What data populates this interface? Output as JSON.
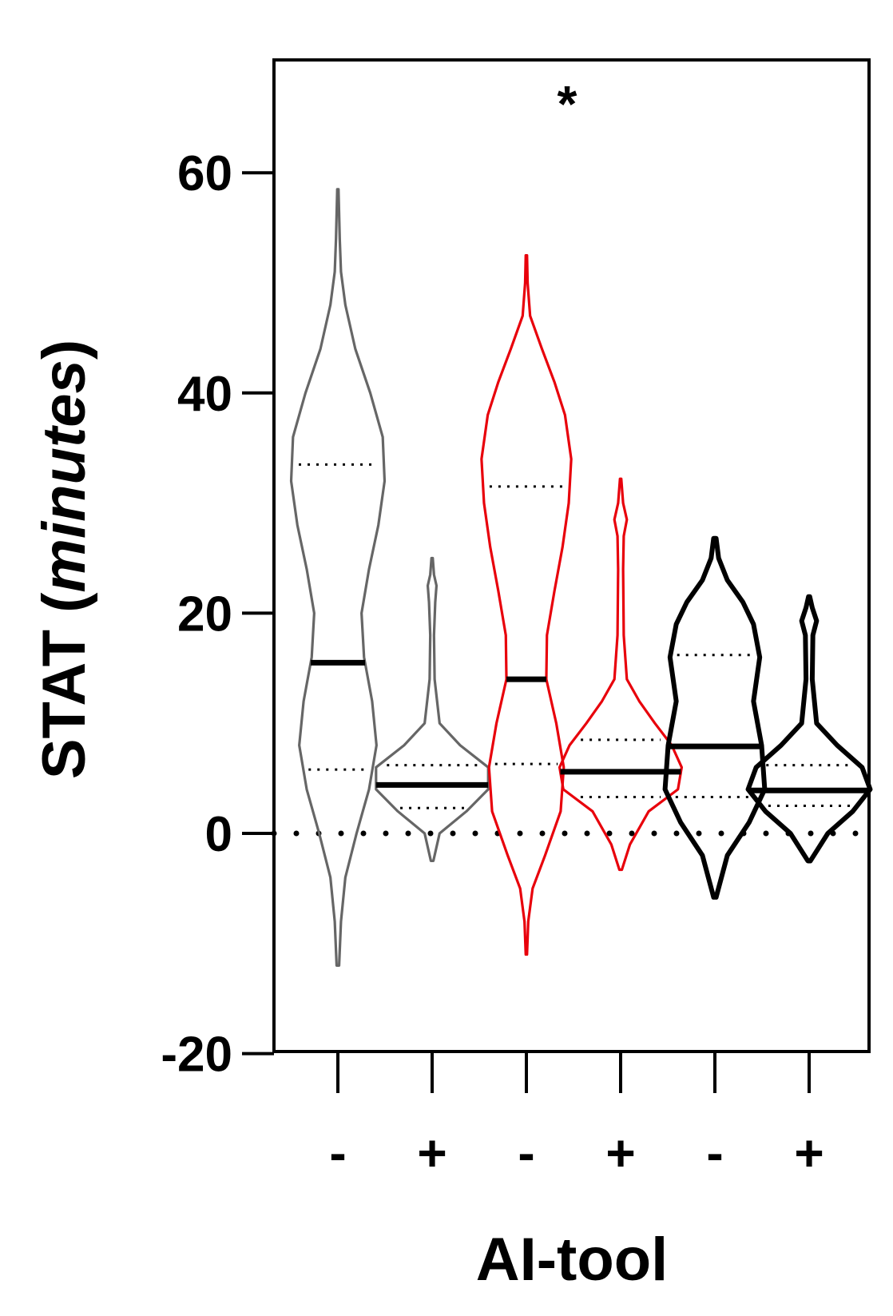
{
  "chart_data": {
    "type": "violin",
    "ylabel": {
      "prefix": "STAT (",
      "italic": "minutes",
      "suffix": ")"
    },
    "xlabel": "AI-tool",
    "ylim": [
      -20,
      70
    ],
    "yticks": [
      -20,
      0,
      20,
      40,
      60
    ],
    "reference_line": 0,
    "annotation": "*",
    "groups": [
      {
        "category": "-",
        "color": "#666666",
        "min": -12,
        "max": 58.5,
        "median": 15.5,
        "q1": 5.8,
        "q3": 33.5,
        "profile": [
          [
            -12,
            0.02
          ],
          [
            -8,
            0.05
          ],
          [
            -4,
            0.12
          ],
          [
            0,
            0.3
          ],
          [
            4,
            0.5
          ],
          [
            8,
            0.62
          ],
          [
            12,
            0.55
          ],
          [
            16,
            0.42
          ],
          [
            20,
            0.38
          ],
          [
            24,
            0.5
          ],
          [
            28,
            0.65
          ],
          [
            32,
            0.75
          ],
          [
            36,
            0.72
          ],
          [
            40,
            0.52
          ],
          [
            44,
            0.28
          ],
          [
            48,
            0.12
          ],
          [
            51,
            0.05
          ],
          [
            54,
            0.03
          ],
          [
            58.5,
            0.01
          ]
        ]
      },
      {
        "category": "+",
        "color": "#666666",
        "min": -2.5,
        "max": 25,
        "median": 4.4,
        "q1": 2.3,
        "q3": 6.2,
        "profile": [
          [
            -2.5,
            0.02
          ],
          [
            0,
            0.12
          ],
          [
            2,
            0.55
          ],
          [
            4,
            0.9
          ],
          [
            6,
            0.9
          ],
          [
            8,
            0.45
          ],
          [
            10,
            0.12
          ],
          [
            14,
            0.04
          ],
          [
            18,
            0.03
          ],
          [
            21,
            0.05
          ],
          [
            22.5,
            0.07
          ],
          [
            23.5,
            0.03
          ],
          [
            25,
            0.01
          ]
        ]
      },
      {
        "category": "-",
        "color": "#e8000b",
        "min": -11,
        "max": 52.5,
        "median": 14,
        "q1": 6.3,
        "q3": 31.5,
        "profile": [
          [
            -11,
            0.01
          ],
          [
            -8,
            0.03
          ],
          [
            -5,
            0.1
          ],
          [
            -2,
            0.3
          ],
          [
            2,
            0.55
          ],
          [
            6,
            0.6
          ],
          [
            10,
            0.48
          ],
          [
            14,
            0.32
          ],
          [
            18,
            0.33
          ],
          [
            22,
            0.45
          ],
          [
            26,
            0.58
          ],
          [
            30,
            0.68
          ],
          [
            34,
            0.72
          ],
          [
            38,
            0.62
          ],
          [
            41,
            0.45
          ],
          [
            44,
            0.25
          ],
          [
            47,
            0.06
          ],
          [
            50,
            0.02
          ],
          [
            52.5,
            0.01
          ]
        ]
      },
      {
        "category": "+",
        "color": "#e8000b",
        "min": -3.3,
        "max": 32.2,
        "median": 5.6,
        "q1": 3.3,
        "q3": 8.5,
        "profile": [
          [
            -3.3,
            0.02
          ],
          [
            -1,
            0.15
          ],
          [
            2,
            0.45
          ],
          [
            4,
            0.92
          ],
          [
            6,
            0.98
          ],
          [
            8,
            0.82
          ],
          [
            10,
            0.55
          ],
          [
            12,
            0.3
          ],
          [
            14,
            0.1
          ],
          [
            18,
            0.05
          ],
          [
            24,
            0.04
          ],
          [
            27,
            0.05
          ],
          [
            28.5,
            0.1
          ],
          [
            30,
            0.04
          ],
          [
            32.2,
            0.01
          ]
        ]
      },
      {
        "category": "-",
        "color": "#000000",
        "min": -5.8,
        "max": 26.8,
        "median": 7.9,
        "q1": 3.3,
        "q3": 16.2,
        "profile": [
          [
            -5.8,
            0.02
          ],
          [
            -2,
            0.2
          ],
          [
            1,
            0.55
          ],
          [
            4,
            0.8
          ],
          [
            8,
            0.75
          ],
          [
            12,
            0.62
          ],
          [
            16,
            0.72
          ],
          [
            19,
            0.62
          ],
          [
            21,
            0.45
          ],
          [
            23,
            0.2
          ],
          [
            25,
            0.06
          ],
          [
            26.8,
            0.02
          ]
        ]
      },
      {
        "category": "+",
        "color": "#000000",
        "min": -2.5,
        "max": 21.5,
        "median": 3.9,
        "q1": 2.5,
        "q3": 6.2,
        "profile": [
          [
            -2.5,
            0.02
          ],
          [
            0,
            0.3
          ],
          [
            2,
            0.7
          ],
          [
            4,
            0.98
          ],
          [
            6,
            0.85
          ],
          [
            8,
            0.45
          ],
          [
            10,
            0.12
          ],
          [
            14,
            0.05
          ],
          [
            18,
            0.06
          ],
          [
            19.3,
            0.12
          ],
          [
            20.5,
            0.05
          ],
          [
            21.5,
            0.01
          ]
        ]
      }
    ]
  }
}
